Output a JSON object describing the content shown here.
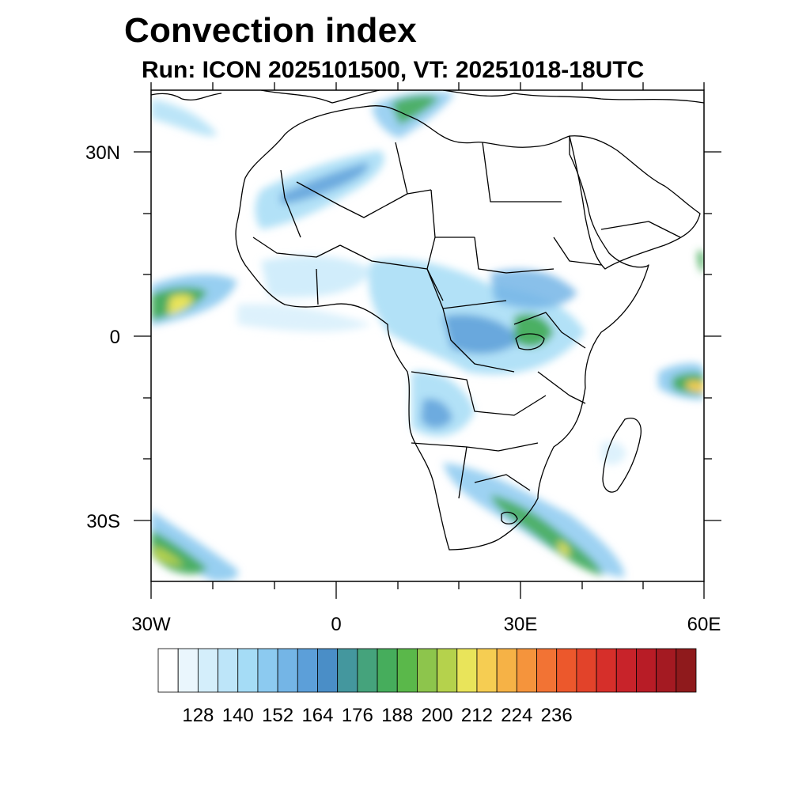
{
  "title": "Convection index",
  "subtitle": "Run: ICON 2025101500,  VT: 20251018-18UTC",
  "map": {
    "lat_range": [
      -40,
      40
    ],
    "lon_range": [
      -30,
      60
    ],
    "lat_labels": [
      "30N",
      "0",
      "30S"
    ],
    "lon_labels": [
      "30W",
      "0",
      "30E",
      "60E"
    ],
    "regions": [
      "Atlantic ITCZ band",
      "Sahara streak",
      "Mediterranean cell",
      "Central Africa convection",
      "Lake Victoria cell",
      "Southern Africa band",
      "South Atlantic band",
      "Indian Ocean cell",
      "Mozambique Channel cell"
    ]
  },
  "colorbar": {
    "labels": [
      "128",
      "140",
      "152",
      "164",
      "176",
      "188",
      "200",
      "212",
      "224",
      "236"
    ],
    "colors": [
      "#ffffff",
      "#eaf6fd",
      "#d4eefb",
      "#bde5f9",
      "#a5dcf6",
      "#8ccaf0",
      "#74b5e6",
      "#5c9fd9",
      "#4a8ec7",
      "#44979e",
      "#45a37c",
      "#46ad5c",
      "#5ab84a",
      "#8dc54c",
      "#b5d24c",
      "#e9e45a",
      "#f6cd52",
      "#f6b246",
      "#f5943c",
      "#f27334",
      "#ec582c",
      "#e2432a",
      "#d62f2a",
      "#c8232a",
      "#b81c26",
      "#a41a22",
      "#8f1a1c"
    ]
  }
}
